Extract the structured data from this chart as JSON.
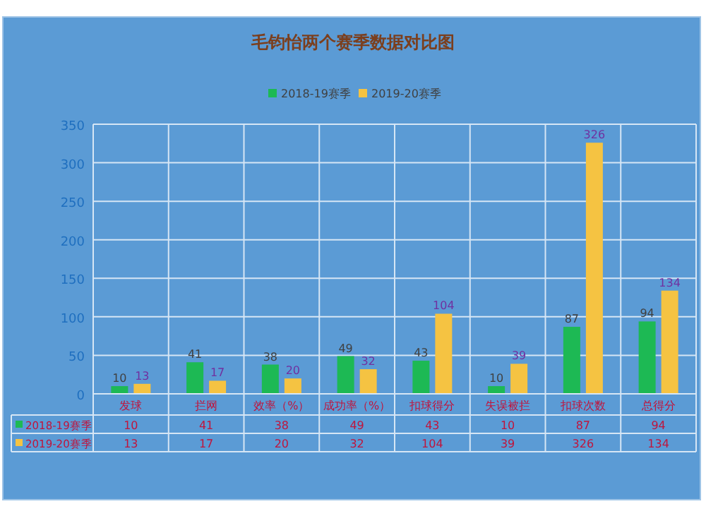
{
  "chart_data": [
    {
      "type": "bar",
      "title": "毛钧怡两个赛季数据对比图",
      "categories": [
        "发球",
        "拦网",
        "效率（%）",
        "成功率（%）",
        "扣球得分",
        "失误被拦",
        "扣球次数",
        "总得分"
      ],
      "series": [
        {
          "name": "2018-19赛季",
          "color": "#1db954",
          "values": [
            10,
            41,
            38,
            49,
            43,
            10,
            87,
            94
          ]
        },
        {
          "name": "2019-20赛季",
          "color": "#f5c342",
          "values": [
            13,
            17,
            20,
            32,
            104,
            39,
            326,
            134
          ]
        }
      ],
      "ylim": [
        0,
        350
      ],
      "yticks": [
        0,
        50,
        100,
        150,
        200,
        250,
        300,
        350
      ],
      "grid": true,
      "legend": "top",
      "data_labels": true
    },
    {
      "type": "other",
      "annotations": [
        "2018-19赛季",
        "10",
        "41",
        "38",
        "49",
        "43",
        "10",
        "87",
        "94",
        "2019-20赛季",
        "13",
        "17",
        "20",
        "32",
        "104",
        "39",
        "326",
        "134"
      ]
    }
  ]
}
